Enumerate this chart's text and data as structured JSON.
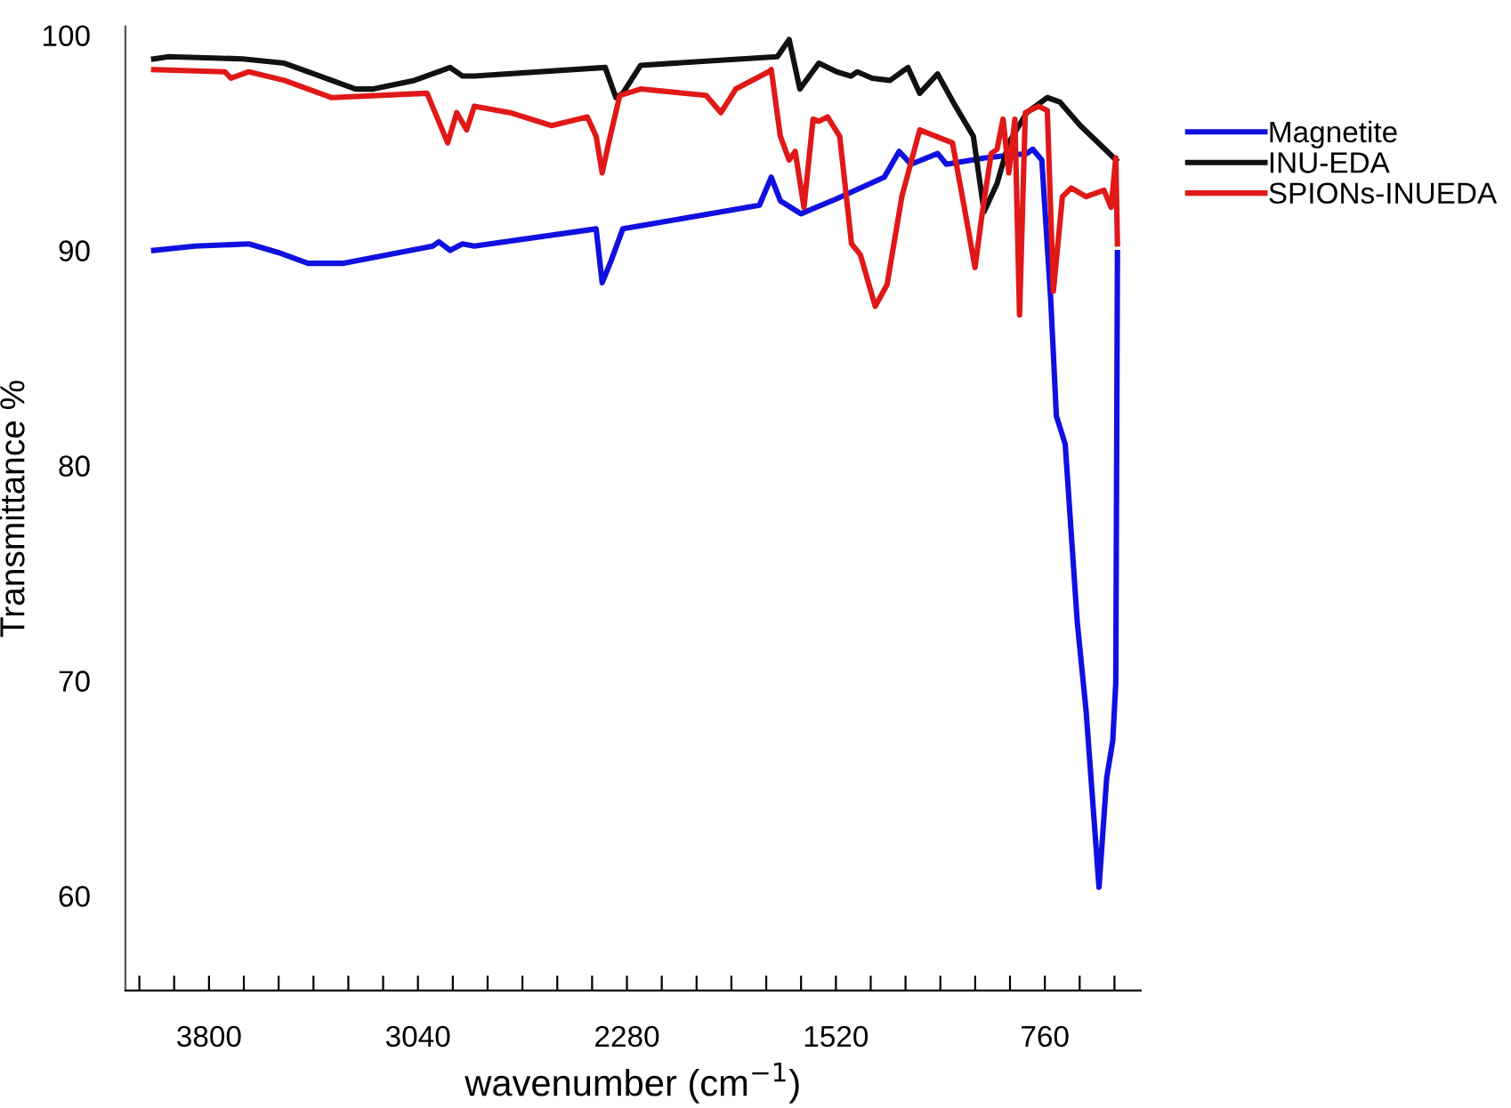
{
  "chart_data": {
    "type": "line",
    "xlabel": "wavenumber (cm$^{−1}$)",
    "ylabel": "Transmittance %",
    "xlim": [
      4104,
      411
    ],
    "ylim": [
      55.6,
      100.4
    ],
    "xticks": [
      {
        "value": 4053.3,
        "label": null
      },
      {
        "value": 3926.7,
        "label": null
      },
      3800,
      {
        "value": 3673.3,
        "label": null
      },
      {
        "value": 3546.7,
        "label": null
      },
      {
        "value": 3420,
        "label": null
      },
      {
        "value": 3293.3,
        "label": null
      },
      {
        "value": 3166.7,
        "label": null
      },
      3040,
      {
        "value": 2913.3,
        "label": null
      },
      {
        "value": 2786.7,
        "label": null
      },
      {
        "value": 2660,
        "label": null
      },
      {
        "value": 2533.3,
        "label": null
      },
      {
        "value": 2406.7,
        "label": null
      },
      2280,
      {
        "value": 2153.3,
        "label": null
      },
      {
        "value": 2026.7,
        "label": null
      },
      {
        "value": 1900,
        "label": null
      },
      {
        "value": 1773.3,
        "label": null
      },
      {
        "value": 1646.7,
        "label": null
      },
      1520,
      {
        "value": 1393.3,
        "label": null
      },
      {
        "value": 1266.7,
        "label": null
      },
      {
        "value": 1140,
        "label": null
      },
      {
        "value": 1013.3,
        "label": null
      },
      {
        "value": 886.7,
        "label": null
      },
      760,
      {
        "value": 633.3,
        "label": null
      },
      {
        "value": 506.7,
        "label": null
      }
    ],
    "yticks": [
      60,
      70,
      80,
      90,
      100
    ],
    "grid": false,
    "legend": "top right",
    "marker": "none",
    "line_style": "solid",
    "series": [
      {
        "name": "Magnetite",
        "color": "#1010e0",
        "x": [
          4001,
          3850,
          3655,
          3548,
          3440,
          3310,
          2986,
          2964,
          2923,
          2878,
          2835,
          2392,
          2370,
          2338,
          2295,
          1798,
          1755,
          1722,
          1647,
          1517,
          1344,
          1290,
          1247,
          1150,
          1118,
          977,
          826,
          804,
          771,
          739,
          718,
          686,
          642,
          610,
          563,
          535,
          513,
          502,
          496
        ],
        "values": [
          90.0,
          90.2,
          90.3,
          89.9,
          89.4,
          89.4,
          90.2,
          90.4,
          90.0,
          90.3,
          90.2,
          91.0,
          88.5,
          89.5,
          91.0,
          92.1,
          93.4,
          92.3,
          91.7,
          92.4,
          93.4,
          94.6,
          94.0,
          94.5,
          94.0,
          94.3,
          94.5,
          94.7,
          94.2,
          87.8,
          82.3,
          81.0,
          72.7,
          68.6,
          60.4,
          65.5,
          67.2,
          69.9,
          89.9
        ]
      },
      {
        "name": "INU-EDA",
        "color": "#111111",
        "x": [
          4001,
          3946,
          3677,
          3526,
          3418,
          3267,
          3202,
          3053,
          2923,
          2878,
          2835,
          2359,
          2320,
          2295,
          2230,
          1733,
          1690,
          1651,
          1582,
          1517,
          1465,
          1442,
          1388,
          1323,
          1258,
          1215,
          1150,
          1085,
          1020,
          981,
          934,
          891,
          826,
          751,
          706,
          631,
          566,
          501
        ],
        "values": [
          98.9,
          99.0,
          98.9,
          98.7,
          98.2,
          97.5,
          97.5,
          97.9,
          98.5,
          98.1,
          98.1,
          98.5,
          97.1,
          97.3,
          98.6,
          99.0,
          99.8,
          97.5,
          98.7,
          98.3,
          98.1,
          98.3,
          98.0,
          97.9,
          98.5,
          97.3,
          98.2,
          96.7,
          95.3,
          91.8,
          93.1,
          95.0,
          96.4,
          97.1,
          96.9,
          95.8,
          95.0,
          94.2
        ]
      },
      {
        "name": "SPIONs-INUEDA",
        "color": "#e01818",
        "x": [
          4001,
          3742,
          3720,
          3655,
          3526,
          3353,
          3007,
          2932,
          2899,
          2863,
          2835,
          2705,
          2554,
          2424,
          2392,
          2370,
          2348,
          2306,
          2230,
          1992,
          1938,
          1884,
          1765,
          1755,
          1722,
          1690,
          1668,
          1636,
          1603,
          1582,
          1550,
          1506,
          1463,
          1431,
          1377,
          1334,
          1280,
          1215,
          1096,
          1053,
          1014,
          988,
          955,
          934,
          912,
          891,
          869,
          852,
          831,
          783,
          751,
          729,
          696,
          664,
          610,
          545,
          519,
          502,
          496
        ],
        "values": [
          98.4,
          98.3,
          98.0,
          98.3,
          97.9,
          97.1,
          97.3,
          95.0,
          96.4,
          95.6,
          96.7,
          96.4,
          95.8,
          96.2,
          95.3,
          93.6,
          94.9,
          97.2,
          97.5,
          97.2,
          96.4,
          97.5,
          98.3,
          98.4,
          95.3,
          94.2,
          94.6,
          92.0,
          96.1,
          96.0,
          96.2,
          95.3,
          90.3,
          89.8,
          87.4,
          88.4,
          92.5,
          95.6,
          95.0,
          92.0,
          89.2,
          91.7,
          94.5,
          94.7,
          96.1,
          93.6,
          96.1,
          87.0,
          96.4,
          96.7,
          96.5,
          88.1,
          92.5,
          92.9,
          92.5,
          92.8,
          92.0,
          94.3,
          90.3
        ]
      }
    ]
  }
}
